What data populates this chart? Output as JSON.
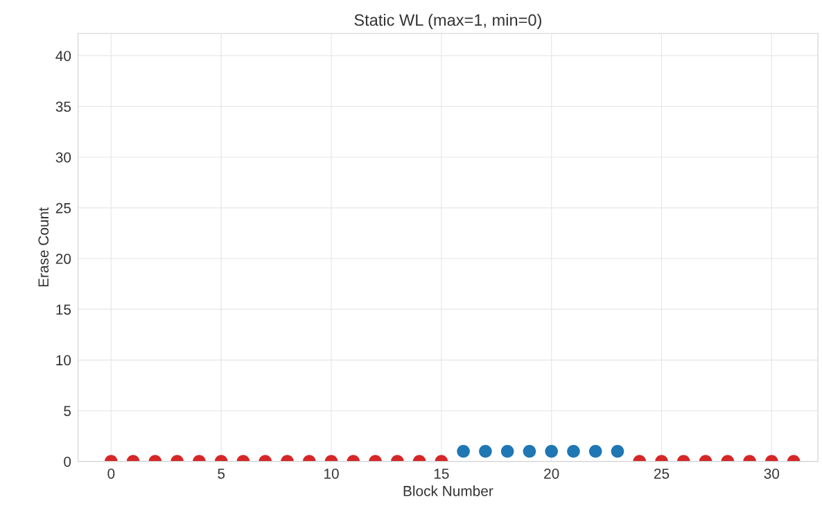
{
  "chart_data": {
    "type": "scatter",
    "title": "Static WL (max=1, min=0)",
    "xlabel": "Block Number",
    "ylabel": "Erase Count",
    "x": [
      0,
      1,
      2,
      3,
      4,
      5,
      6,
      7,
      8,
      9,
      10,
      11,
      12,
      13,
      14,
      15,
      16,
      17,
      18,
      19,
      20,
      21,
      22,
      23,
      24,
      25,
      26,
      27,
      28,
      29,
      30,
      31
    ],
    "values": [
      0,
      0,
      0,
      0,
      0,
      0,
      0,
      0,
      0,
      0,
      0,
      0,
      0,
      0,
      0,
      0,
      1,
      1,
      1,
      1,
      1,
      1,
      1,
      1,
      0,
      0,
      0,
      0,
      0,
      0,
      0,
      0
    ],
    "colors": [
      "#d62728",
      "#d62728",
      "#d62728",
      "#d62728",
      "#d62728",
      "#d62728",
      "#d62728",
      "#d62728",
      "#d62728",
      "#d62728",
      "#d62728",
      "#d62728",
      "#d62728",
      "#d62728",
      "#d62728",
      "#d62728",
      "#1f77b4",
      "#1f77b4",
      "#1f77b4",
      "#1f77b4",
      "#1f77b4",
      "#1f77b4",
      "#1f77b4",
      "#1f77b4",
      "#d62728",
      "#d62728",
      "#d62728",
      "#d62728",
      "#d62728",
      "#d62728",
      "#d62728",
      "#d62728"
    ],
    "xlim": [
      -1.5,
      32.1
    ],
    "xticks": [
      0,
      5,
      10,
      15,
      20,
      25,
      30
    ],
    "ylim": [
      0,
      42.2
    ],
    "yticks": [
      0,
      5,
      10,
      15,
      20,
      25,
      30,
      35,
      40
    ],
    "grid": true,
    "marker": "circle"
  }
}
